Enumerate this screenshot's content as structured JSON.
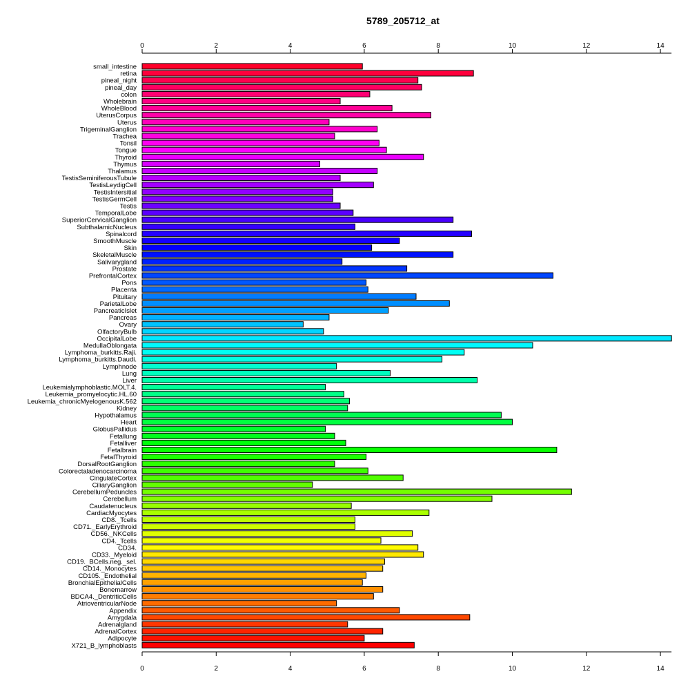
{
  "chart_data": {
    "type": "bar",
    "orientation": "horizontal",
    "title": "5789_205712_at",
    "xlabel": "",
    "ylabel": "",
    "xlim": [
      0,
      14.3
    ],
    "x_ticks": [
      0,
      2,
      4,
      6,
      8,
      10,
      12,
      14
    ],
    "axes": [
      "top",
      "bottom"
    ],
    "grid": false,
    "color_scheme": "rainbow",
    "categories": [
      "small_intestine",
      "retina",
      "pineal_night",
      "pineal_day",
      "colon",
      "Wholebrain",
      "WholeBlood",
      "UterusCorpus",
      "Uterus",
      "TrigeminalGanglion",
      "Trachea",
      "Tonsil",
      "Tongue",
      "Thyroid",
      "Thymus",
      "Thalamus",
      "TestisSeminiferousTubule",
      "TestisLeydigCell",
      "TestisIntersitial",
      "TestisGermCell",
      "Testis",
      "TemporalLobe",
      "SuperiorCervicalGanglion",
      "SubthalamicNucleus",
      "Spinalcord",
      "SmoothMuscle",
      "Skin",
      "SkeletalMuscle",
      "Salivarygland",
      "Prostate",
      "PrefrontalCortex",
      "Pons",
      "Placenta",
      "Pituitary",
      "ParietalLobe",
      "PancreaticIslet",
      "Pancreas",
      "Ovary",
      "OlfactoryBulb",
      "OccipitalLobe",
      "MedullaOblongata",
      "Lymphoma_burkitts.Raji.",
      "Lymphoma_burkitts.Daudi.",
      "Lymphnode",
      "Lung",
      "Liver",
      "Leukemialymphoblastic.MOLT.4.",
      "Leukemia_promyelocytic.HL.60",
      "Leukemia_chronicMyelogenousK.562",
      "Kidney",
      "Hypothalamus",
      "Heart",
      "GlobusPallidus",
      "Fetallung",
      "Fetalliver",
      "Fetalbrain",
      "FetalThyroid",
      "DorsalRootGanglion",
      "Colorectaladenocarcinoma",
      "CingulateCortex",
      "CiliaryGanglion",
      "CerebellumPeduncles",
      "Cerebellum",
      "Caudatenucleus",
      "CardiacMyocytes",
      "CD8._Tcells",
      "CD71._EarlyErythroid",
      "CD56._NKCells",
      "CD4._Tcells",
      "CD34.",
      "CD33._Myeloid",
      "CD19._BCells.neg._sel.",
      "CD14._Monocytes",
      "CD105._Endothelial",
      "BronchialEpithelialCells",
      "Bonemarrow",
      "BDCA4._DentriticCells",
      "AtrioventricularNode",
      "Appendix",
      "Amygdala",
      "Adrenalgland",
      "AdrenalCortex",
      "Adipocyte",
      "X721_B_lymphoblasts"
    ],
    "values": [
      5.95,
      8.95,
      7.45,
      7.55,
      6.15,
      5.35,
      6.75,
      7.8,
      5.05,
      6.35,
      5.2,
      6.4,
      6.6,
      7.6,
      4.8,
      6.35,
      5.35,
      6.25,
      5.15,
      5.15,
      5.35,
      5.7,
      8.4,
      5.75,
      8.9,
      6.95,
      6.2,
      8.4,
      5.4,
      7.15,
      11.1,
      6.05,
      6.1,
      7.4,
      8.3,
      6.65,
      5.05,
      4.35,
      4.9,
      14.3,
      10.55,
      8.7,
      8.1,
      5.25,
      6.7,
      9.05,
      4.95,
      5.45,
      5.6,
      5.55,
      9.7,
      10.0,
      4.95,
      5.2,
      5.5,
      11.2,
      6.05,
      5.2,
      6.1,
      7.05,
      4.6,
      11.6,
      9.45,
      5.65,
      7.75,
      5.75,
      5.75,
      7.3,
      6.45,
      7.45,
      7.6,
      6.55,
      6.5,
      6.05,
      5.95,
      6.5,
      6.25,
      5.25,
      6.95,
      8.85,
      5.55,
      6.5,
      6.0,
      7.35
    ]
  }
}
